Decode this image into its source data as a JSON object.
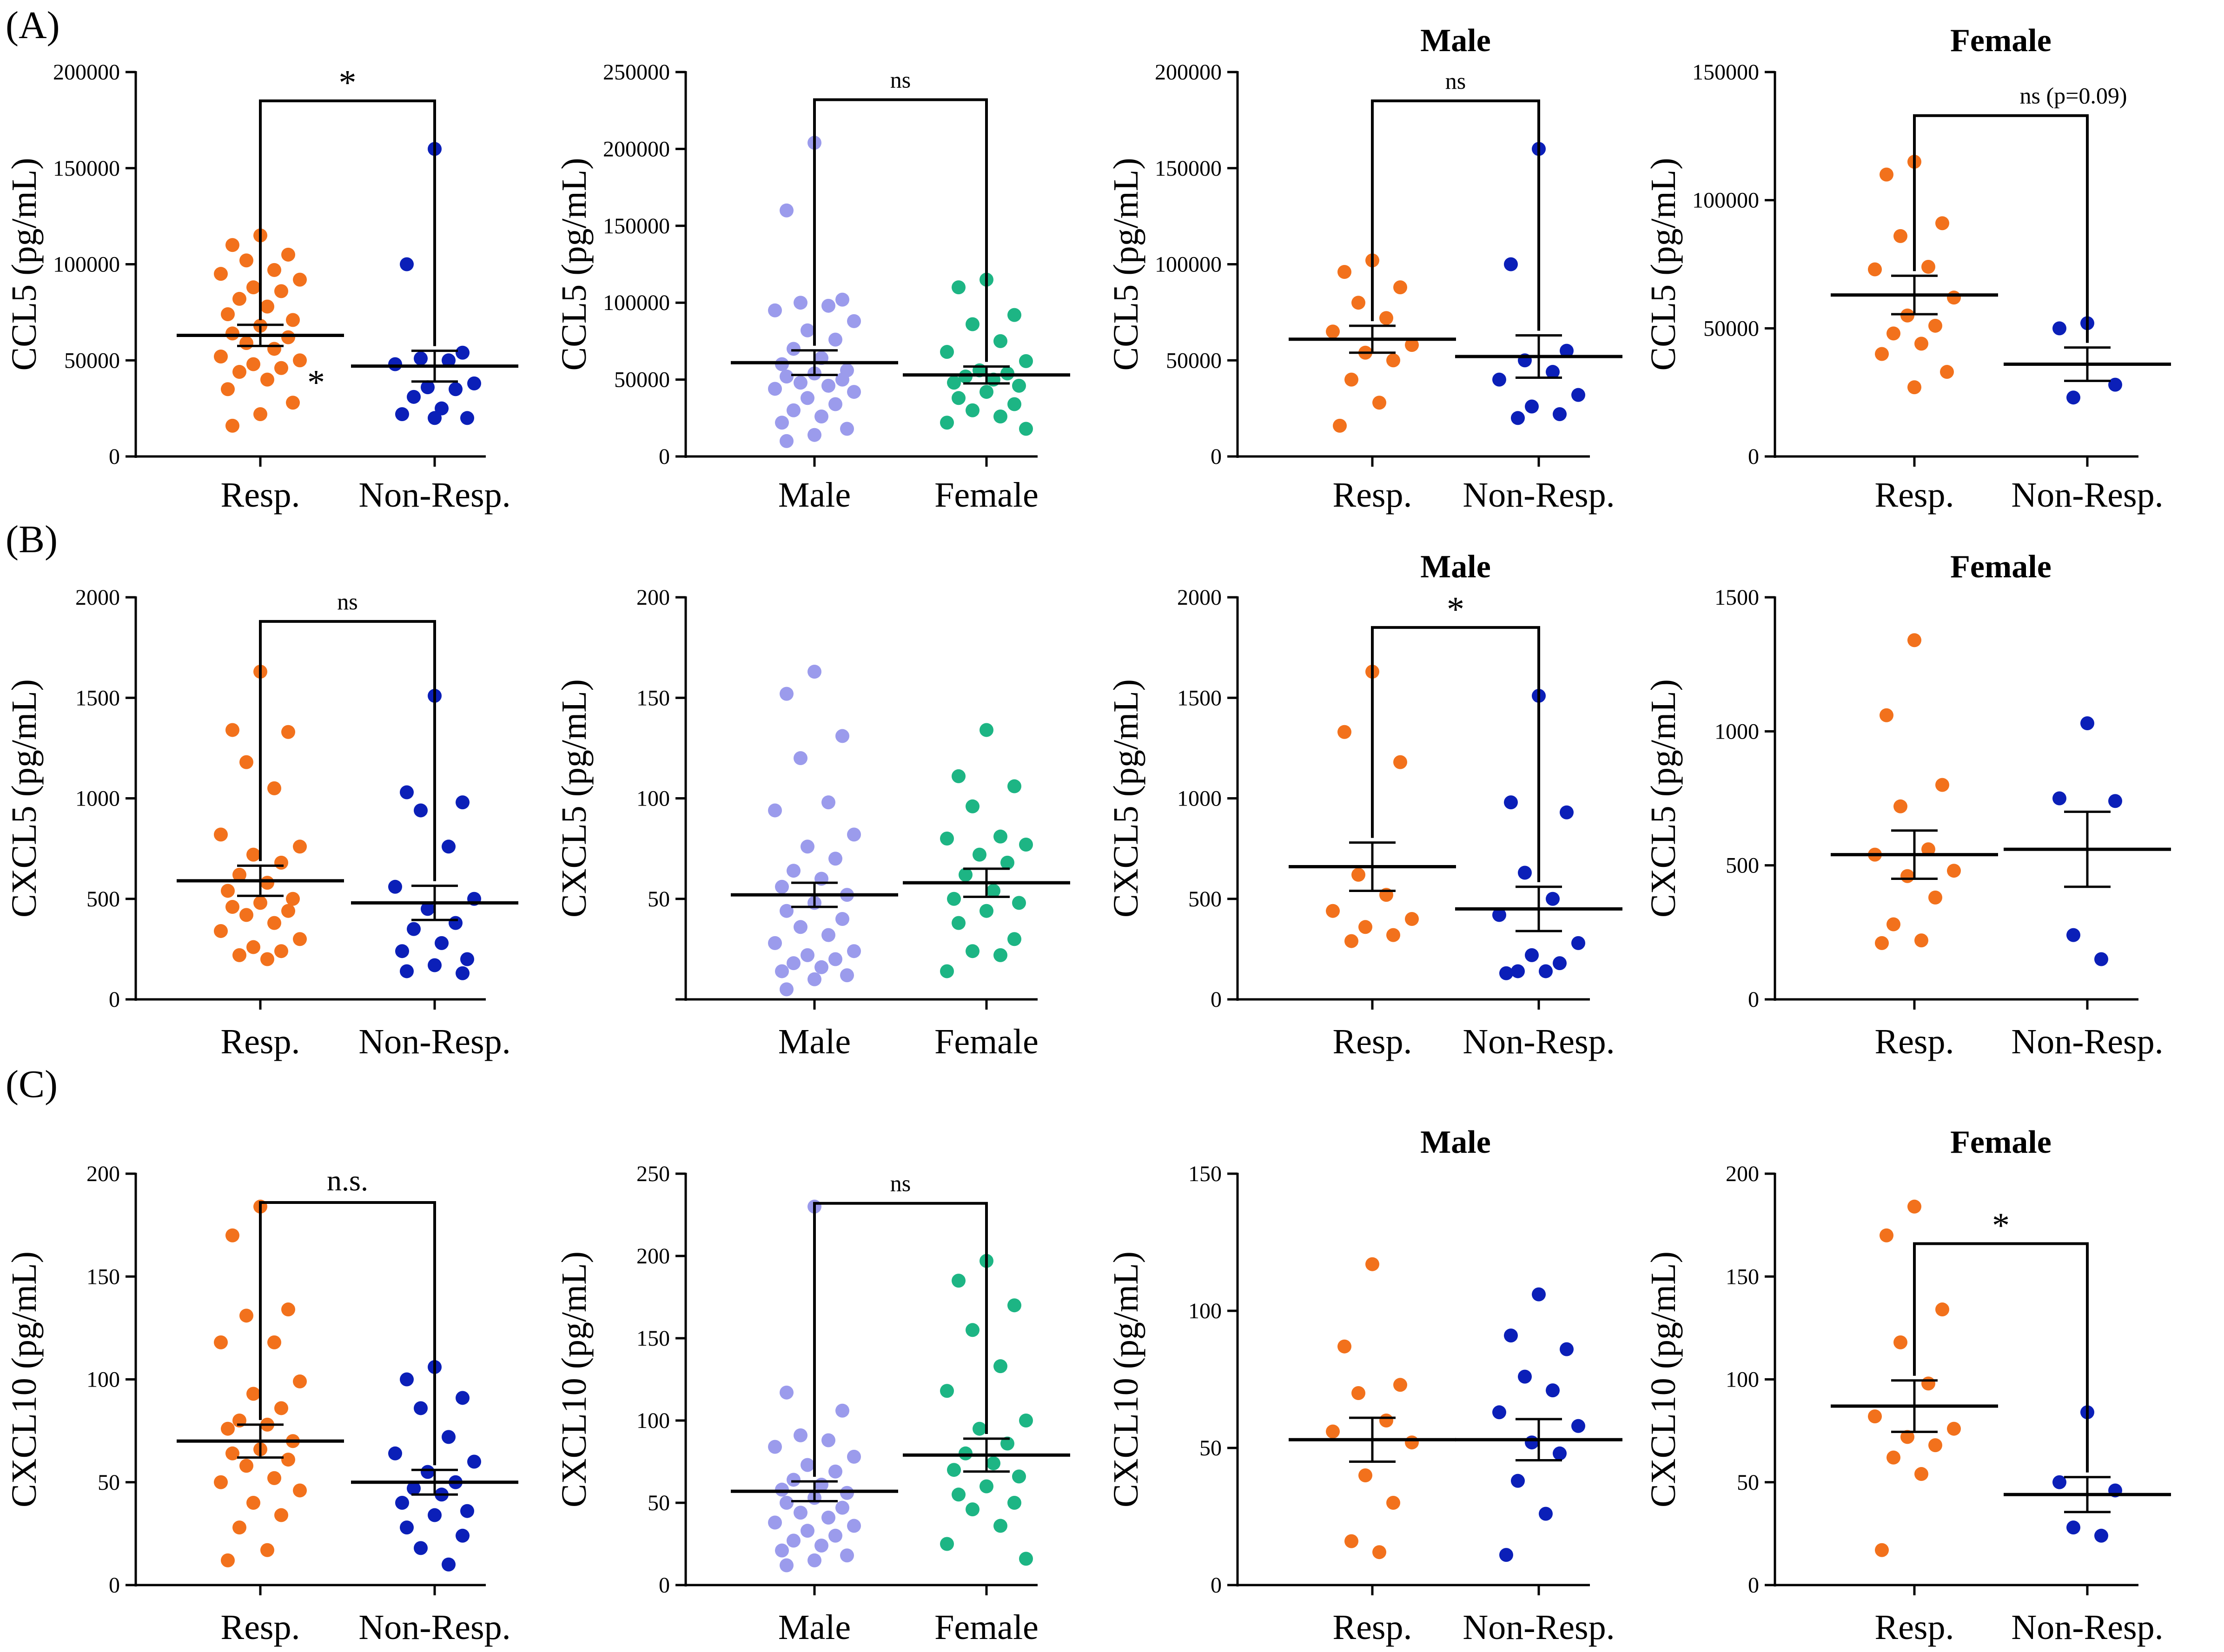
{
  "figure": {
    "row_labels": [
      "(A)",
      "(B)",
      "(C)"
    ],
    "colors": {
      "resp": "#F2711C",
      "non_resp": "#0B1FB8",
      "male": "#9B9BEC",
      "female": "#1DB584",
      "axis": "#000000"
    }
  },
  "chart_data": [
    {
      "id": "A1",
      "type": "scatter",
      "title": "",
      "ylabel": "CCL5 (pg/mL)",
      "ylim": [
        0,
        200000
      ],
      "yticks": [
        0,
        50000,
        100000,
        150000,
        200000
      ],
      "tick_labels": [
        "0",
        "50000",
        "100000",
        "150000",
        "200000"
      ],
      "categories": [
        "Resp.",
        "Non-Resp."
      ],
      "series": [
        {
          "name": "Resp.",
          "color": "#F2711C",
          "mean": 63000,
          "sem": 5500,
          "values": [
            115000,
            110000,
            105000,
            102000,
            97000,
            95000,
            92000,
            88000,
            86000,
            82000,
            78000,
            74000,
            71000,
            68000,
            64000,
            62000,
            59000,
            56000,
            52000,
            50000,
            48000,
            46000,
            44000,
            40000,
            35000,
            28000,
            22000,
            16000
          ]
        },
        {
          "name": "Non-Resp.",
          "color": "#0B1FB8",
          "mean": 47000,
          "sem": 8000,
          "values": [
            160000,
            100000,
            54000,
            51000,
            50000,
            48000,
            38000,
            36000,
            35000,
            31000,
            25000,
            22000,
            20000,
            20000
          ]
        }
      ],
      "annotation": {
        "text": "*",
        "from": 0,
        "to": 1,
        "y": 185000
      },
      "extra_text": {
        "text": "*",
        "category": 0,
        "y": 43000
      }
    },
    {
      "id": "A2",
      "type": "scatter",
      "title": "",
      "ylabel": "CCL5 (pg/mL)",
      "ylim": [
        0,
        250000
      ],
      "yticks": [
        0,
        50000,
        100000,
        150000,
        200000,
        250000
      ],
      "tick_labels": [
        "0",
        "50000",
        "100000",
        "150000",
        "200000",
        "250000"
      ],
      "categories": [
        "Male",
        "Female"
      ],
      "series": [
        {
          "name": "Male",
          "color": "#9B9BEC",
          "mean": 61000,
          "sem": 8000,
          "values": [
            204000,
            160000,
            102000,
            100000,
            98000,
            95000,
            88000,
            82000,
            76000,
            70000,
            64000,
            60000,
            56000,
            54000,
            52000,
            50000,
            48000,
            46000,
            44000,
            42000,
            38000,
            34000,
            30000,
            26000,
            22000,
            18000,
            14000,
            10000
          ]
        },
        {
          "name": "Female",
          "color": "#1DB584",
          "mean": 53000,
          "sem": 5500,
          "values": [
            115000,
            110000,
            92000,
            86000,
            75000,
            68000,
            62000,
            56000,
            54000,
            52000,
            50000,
            48000,
            46000,
            42000,
            38000,
            34000,
            30000,
            26000,
            22000,
            18000
          ]
        }
      ],
      "annotation": {
        "text": "ns",
        "from": 0,
        "to": 1,
        "y": 232000
      }
    },
    {
      "id": "A3",
      "type": "scatter",
      "title": "Male",
      "ylabel": "CCL5 (pg/mL)",
      "ylim": [
        0,
        200000
      ],
      "yticks": [
        0,
        50000,
        100000,
        150000,
        200000
      ],
      "tick_labels": [
        "0",
        "50000",
        "100000",
        "150000",
        "200000"
      ],
      "categories": [
        "Resp.",
        "Non-Resp."
      ],
      "series": [
        {
          "name": "Resp.",
          "color": "#F2711C",
          "mean": 61000,
          "sem": 7000,
          "values": [
            102000,
            96000,
            88000,
            80000,
            72000,
            65000,
            58000,
            54000,
            50000,
            40000,
            28000,
            16000
          ]
        },
        {
          "name": "Non-Resp.",
          "color": "#0B1FB8",
          "mean": 52000,
          "sem": 11000,
          "values": [
            160000,
            100000,
            55000,
            50000,
            44000,
            40000,
            32000,
            26000,
            22000,
            20000
          ]
        }
      ],
      "annotation": {
        "text": "ns",
        "from": 0,
        "to": 1,
        "y": 185000
      }
    },
    {
      "id": "A4",
      "type": "scatter",
      "title": "Female",
      "ylabel": "CCL5 (pg/mL)",
      "ylim": [
        0,
        150000
      ],
      "yticks": [
        0,
        50000,
        100000,
        150000
      ],
      "tick_labels": [
        "0",
        "50000",
        "100000",
        "150000"
      ],
      "categories": [
        "Resp.",
        "Non-Resp."
      ],
      "series": [
        {
          "name": "Resp.",
          "color": "#F2711C",
          "mean": 63000,
          "sem": 7500,
          "values": [
            115000,
            110000,
            91000,
            86000,
            74000,
            73000,
            62000,
            55000,
            51000,
            48000,
            44000,
            40000,
            33000,
            27000
          ]
        },
        {
          "name": "Non-Resp.",
          "color": "#0B1FB8",
          "mean": 36000,
          "sem": 6500,
          "values": [
            52000,
            50000,
            28000,
            23000
          ]
        }
      ],
      "annotation": {
        "text": "ns (p=0.09)",
        "from": 0,
        "to": 1,
        "y": 133000
      }
    },
    {
      "id": "B1",
      "type": "scatter",
      "title": "",
      "ylabel": "CXCL5 (pg/mL)",
      "ylim": [
        0,
        2000
      ],
      "yticks": [
        0,
        500,
        1000,
        1500,
        2000
      ],
      "tick_labels": [
        "0",
        "500",
        "1000",
        "1500",
        "2000"
      ],
      "categories": [
        "Resp.",
        "Non-Resp."
      ],
      "series": [
        {
          "name": "Resp.",
          "color": "#F2711C",
          "mean": 590,
          "sem": 75,
          "values": [
            1630,
            1340,
            1330,
            1180,
            1050,
            820,
            760,
            720,
            680,
            620,
            580,
            540,
            500,
            480,
            460,
            440,
            420,
            380,
            340,
            300,
            260,
            240,
            220,
            200
          ]
        },
        {
          "name": "Non-Resp.",
          "color": "#0B1FB8",
          "mean": 480,
          "sem": 85,
          "values": [
            1510,
            1030,
            980,
            940,
            760,
            560,
            500,
            450,
            380,
            350,
            280,
            240,
            200,
            170,
            140,
            130
          ]
        }
      ],
      "annotation": {
        "text": "ns",
        "from": 0,
        "to": 1,
        "y": 1880
      }
    },
    {
      "id": "B2",
      "type": "scatter",
      "title": "",
      "ylabel": "CXCL5 (pg/mL)",
      "ylim": [
        0,
        200
      ],
      "yticks": [
        0,
        50,
        100,
        150,
        200
      ],
      "tick_labels": [
        "",
        "50",
        "100",
        "150",
        "200"
      ],
      "categories": [
        "Male",
        "Female"
      ],
      "series": [
        {
          "name": "Male",
          "color": "#9B9BEC",
          "mean": 52,
          "sem": 6,
          "values": [
            163,
            152,
            131,
            120,
            98,
            94,
            82,
            76,
            70,
            64,
            60,
            56,
            52,
            48,
            44,
            40,
            36,
            32,
            28,
            24,
            22,
            20,
            18,
            16,
            14,
            12,
            10,
            5
          ]
        },
        {
          "name": "Female",
          "color": "#1DB584",
          "mean": 58,
          "sem": 7,
          "values": [
            134,
            111,
            106,
            96,
            81,
            80,
            77,
            72,
            68,
            62,
            54,
            50,
            48,
            44,
            38,
            30,
            24,
            22,
            14
          ]
        }
      ]
    },
    {
      "id": "B3",
      "type": "scatter",
      "title": "Male",
      "ylabel": "CXCL5 (pg/mL)",
      "ylim": [
        0,
        2000
      ],
      "yticks": [
        0,
        500,
        1000,
        1500,
        2000
      ],
      "tick_labels": [
        "0",
        "500",
        "1000",
        "1500",
        "2000"
      ],
      "categories": [
        "Resp.",
        "Non-Resp."
      ],
      "series": [
        {
          "name": "Resp.",
          "color": "#F2711C",
          "mean": 660,
          "sem": 120,
          "values": [
            1630,
            1330,
            1180,
            620,
            520,
            440,
            400,
            360,
            320,
            290
          ]
        },
        {
          "name": "Non-Resp.",
          "color": "#0B1FB8",
          "mean": 450,
          "sem": 110,
          "values": [
            1510,
            980,
            930,
            630,
            500,
            420,
            280,
            220,
            180,
            140,
            140,
            130
          ]
        }
      ],
      "annotation": {
        "text": "*",
        "from": 0,
        "to": 1,
        "y": 1850
      }
    },
    {
      "id": "B4",
      "type": "scatter",
      "title": "Female",
      "ylabel": "CXCL5 (pg/mL)",
      "ylim": [
        0,
        1500
      ],
      "yticks": [
        0,
        500,
        1000,
        1500
      ],
      "tick_labels": [
        "0",
        "500",
        "1000",
        "1500"
      ],
      "categories": [
        "Resp.",
        "Non-Resp."
      ],
      "series": [
        {
          "name": "Resp.",
          "color": "#F2711C",
          "mean": 540,
          "sem": 90,
          "values": [
            1340,
            1060,
            800,
            720,
            560,
            540,
            480,
            460,
            380,
            280,
            220,
            210
          ]
        },
        {
          "name": "Non-Resp.",
          "color": "#0B1FB8",
          "mean": 560,
          "sem": 140,
          "values": [
            1030,
            750,
            740,
            240,
            150
          ]
        }
      ]
    },
    {
      "id": "C1",
      "type": "scatter",
      "title": "",
      "ylabel": "CXCL10 (pg/mL)",
      "ylim": [
        0,
        200
      ],
      "yticks": [
        0,
        50,
        100,
        150,
        200
      ],
      "tick_labels": [
        "0",
        "50",
        "100",
        "150",
        "200"
      ],
      "categories": [
        "Resp.",
        "Non-Resp."
      ],
      "series": [
        {
          "name": "Resp.",
          "color": "#F2711C",
          "mean": 70,
          "sem": 8,
          "values": [
            184,
            170,
            134,
            131,
            118,
            118,
            99,
            93,
            86,
            80,
            78,
            76,
            70,
            66,
            64,
            61,
            58,
            52,
            50,
            46,
            40,
            34,
            28,
            17,
            12
          ]
        },
        {
          "name": "Non-Resp.",
          "color": "#0B1FB8",
          "mean": 50,
          "sem": 6,
          "values": [
            106,
            100,
            91,
            86,
            72,
            64,
            60,
            55,
            50,
            47,
            44,
            40,
            36,
            34,
            28,
            24,
            18,
            10
          ]
        }
      ],
      "annotation": {
        "text": "n.s.",
        "from": 0,
        "to": 1,
        "y": 186
      }
    },
    {
      "id": "C2",
      "type": "scatter",
      "title": "",
      "ylabel": "CXCL10 (pg/mL)",
      "ylim": [
        0,
        250
      ],
      "yticks": [
        0,
        50,
        100,
        150,
        200,
        250
      ],
      "tick_labels": [
        "0",
        "50",
        "100",
        "150",
        "200",
        "250"
      ],
      "categories": [
        "Male",
        "Female"
      ],
      "series": [
        {
          "name": "Male",
          "color": "#9B9BEC",
          "mean": 57,
          "sem": 6,
          "values": [
            230,
            117,
            106,
            91,
            88,
            84,
            78,
            73,
            69,
            64,
            61,
            58,
            56,
            53,
            50,
            47,
            44,
            41,
            38,
            36,
            33,
            30,
            27,
            24,
            21,
            18,
            15,
            12
          ]
        },
        {
          "name": "Female",
          "color": "#1DB584",
          "mean": 79,
          "sem": 10,
          "values": [
            197,
            185,
            170,
            155,
            133,
            118,
            100,
            95,
            86,
            80,
            74,
            70,
            66,
            60,
            55,
            50,
            46,
            36,
            25,
            16
          ]
        }
      ],
      "annotation": {
        "text": "ns",
        "from": 0,
        "to": 1,
        "y": 232
      }
    },
    {
      "id": "C3",
      "type": "scatter",
      "title": "Male",
      "ylabel": "CXCL10 (pg/mL)",
      "ylim": [
        0,
        150
      ],
      "yticks": [
        0,
        50,
        100,
        150
      ],
      "tick_labels": [
        "0",
        "50",
        "100",
        "150"
      ],
      "categories": [
        "Resp.",
        "Non-Resp."
      ],
      "series": [
        {
          "name": "Resp.",
          "color": "#F2711C",
          "mean": 53,
          "sem": 8,
          "values": [
            117,
            87,
            73,
            70,
            60,
            56,
            52,
            40,
            30,
            16,
            12
          ]
        },
        {
          "name": "Non-Resp.",
          "color": "#0B1FB8",
          "mean": 53,
          "sem": 7.5,
          "values": [
            106,
            91,
            86,
            76,
            71,
            63,
            58,
            52,
            48,
            38,
            26,
            11
          ]
        }
      ]
    },
    {
      "id": "C4",
      "type": "scatter",
      "title": "Female",
      "ylabel": "CXCL10 (pg/mL)",
      "ylim": [
        0,
        200
      ],
      "yticks": [
        0,
        50,
        100,
        150,
        200
      ],
      "tick_labels": [
        "0",
        "50",
        "100",
        "150",
        "200"
      ],
      "categories": [
        "Resp.",
        "Non-Resp."
      ],
      "series": [
        {
          "name": "Resp.",
          "color": "#F2711C",
          "mean": 87,
          "sem": 12.5,
          "values": [
            184,
            170,
            134,
            118,
            98,
            82,
            76,
            72,
            68,
            62,
            54,
            17
          ]
        },
        {
          "name": "Non-Resp.",
          "color": "#0B1FB8",
          "mean": 44,
          "sem": 8.5,
          "values": [
            84,
            50,
            46,
            28,
            24
          ]
        }
      ],
      "annotation": {
        "text": "*",
        "from": 0,
        "to": 1,
        "y": 166
      }
    }
  ]
}
